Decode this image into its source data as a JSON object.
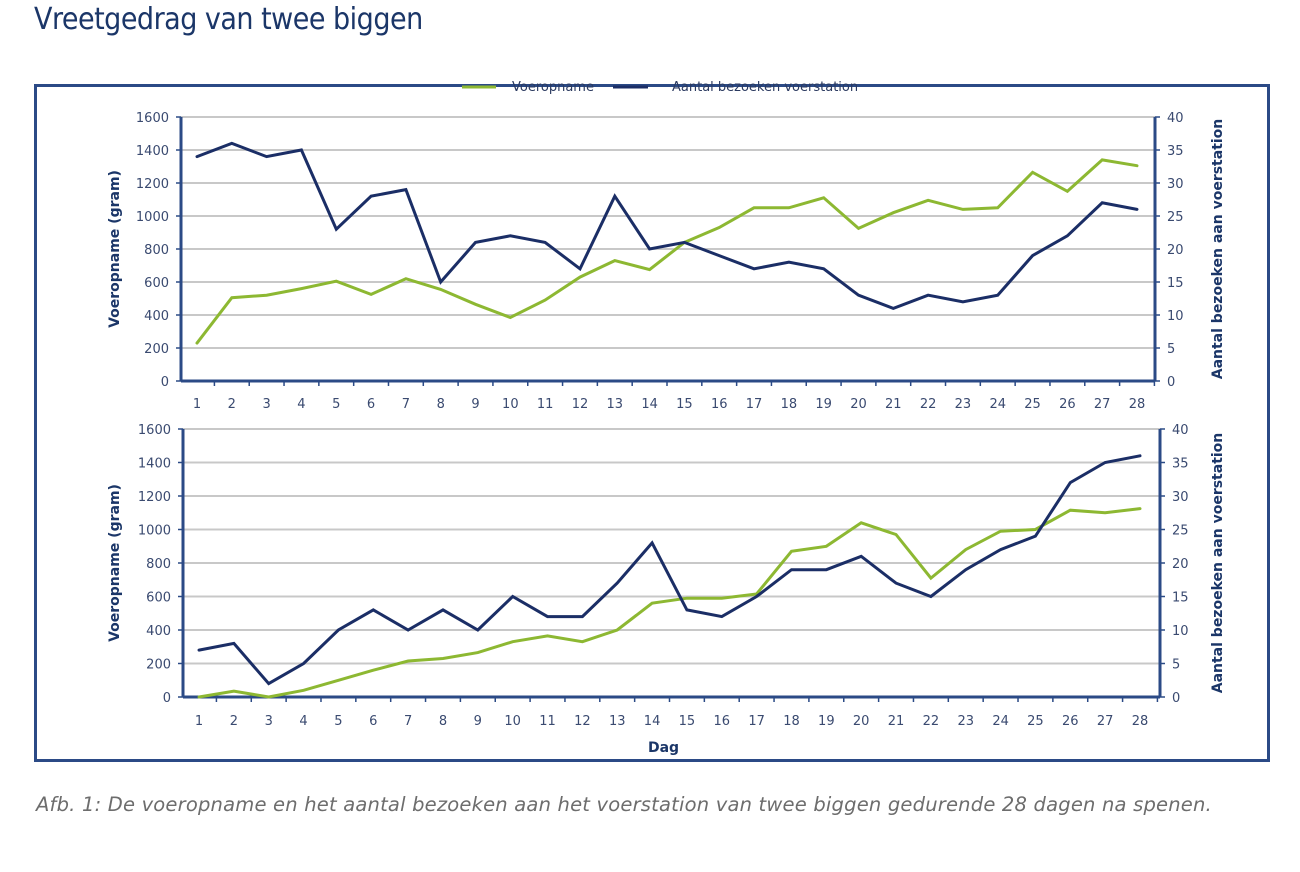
{
  "page": {
    "title": "Vreetgedrag van twee biggen",
    "caption": "Afb. 1: De voeropname en het aantal bezoeken aan het voerstation van twee biggen gedurende 28 dagen na spenen."
  },
  "colors": {
    "voeropname": "#8db832",
    "bezoeken": "#1b2e66",
    "grid": "#c8c8c8",
    "axis": "#2b4a86",
    "frame": "#2b4a86"
  },
  "legend": {
    "position": "top-center",
    "items": [
      {
        "label": "Voeropname",
        "color": "#8db832"
      },
      {
        "label": "Aantal bezoeken voerstation",
        "color": "#1b2e66"
      }
    ]
  },
  "chart_data": [
    {
      "type": "line",
      "title": "",
      "x": [
        1,
        2,
        3,
        4,
        5,
        6,
        7,
        8,
        9,
        10,
        11,
        12,
        13,
        14,
        15,
        16,
        17,
        18,
        19,
        20,
        21,
        22,
        23,
        24,
        25,
        26,
        27,
        28
      ],
      "x_tick_labels": [
        "1",
        "2",
        "3",
        "4",
        "5",
        "6",
        "7",
        "8",
        "9",
        "10",
        "11",
        "12",
        "13",
        "14",
        "15",
        "16",
        "17",
        "18",
        "19",
        "20",
        "21",
        "22",
        "23",
        "24",
        "25",
        "26",
        "27",
        "28"
      ],
      "xlabel": "",
      "ylabel": "Voeropname (gram)",
      "ylim": [
        0,
        1600
      ],
      "y_ticks": [
        "0",
        "200",
        "400",
        "600",
        "800",
        "1000",
        "1200",
        "1400",
        "1600"
      ],
      "y2label": "Aantal bezoeken aan voerstation",
      "y2lim": [
        0,
        40
      ],
      "y2_ticks": [
        "0",
        "5",
        "10",
        "15",
        "20",
        "25",
        "30",
        "35",
        "40"
      ],
      "grid": true,
      "series": [
        {
          "name": "Voeropname",
          "axis": "left",
          "values": [
            230,
            505,
            520,
            560,
            605,
            525,
            620,
            555,
            465,
            385,
            490,
            630,
            730,
            675,
            840,
            930,
            1050,
            1050,
            1110,
            925,
            1020,
            1095,
            1040,
            1050,
            1265,
            1150,
            1340,
            1305
          ]
        },
        {
          "name": "Aantal bezoeken voerstation",
          "axis": "right",
          "values": [
            34,
            36,
            34,
            35,
            23,
            28,
            29,
            15,
            21,
            22,
            21,
            17,
            28,
            20,
            21,
            19,
            17,
            18,
            17,
            13,
            11,
            13,
            12,
            13,
            19,
            22,
            27,
            26
          ]
        }
      ]
    },
    {
      "type": "line",
      "title": "",
      "x": [
        1,
        2,
        3,
        4,
        5,
        6,
        7,
        8,
        9,
        10,
        11,
        12,
        13,
        14,
        15,
        16,
        17,
        18,
        19,
        20,
        21,
        22,
        23,
        24,
        25,
        26,
        27,
        28
      ],
      "x_tick_labels": [
        "1",
        "2",
        "3",
        "4",
        "5",
        "6",
        "7",
        "8",
        "9",
        "10",
        "11",
        "12",
        "13",
        "14",
        "15",
        "16",
        "17",
        "18",
        "19",
        "20",
        "21",
        "22",
        "23",
        "24",
        "25",
        "26",
        "27",
        "28"
      ],
      "xlabel": "Dag",
      "ylabel": "Voeropname (gram)",
      "ylim": [
        0,
        1600
      ],
      "y_ticks": [
        "0",
        "200",
        "400",
        "600",
        "800",
        "1000",
        "1200",
        "1400",
        "1600"
      ],
      "y2label": "Aantal bezoeken aan voerstation",
      "y2lim": [
        0,
        40
      ],
      "y2_ticks": [
        "0",
        "5",
        "10",
        "15",
        "20",
        "25",
        "30",
        "35",
        "40"
      ],
      "grid": true,
      "series": [
        {
          "name": "Voeropname",
          "axis": "left",
          "values": [
            0,
            35,
            0,
            40,
            100,
            160,
            215,
            230,
            265,
            330,
            365,
            330,
            400,
            560,
            590,
            590,
            615,
            870,
            900,
            1040,
            970,
            710,
            880,
            990,
            1000,
            1115,
            1100,
            1125
          ]
        },
        {
          "name": "Aantal bezoeken voerstation",
          "axis": "right",
          "values": [
            7,
            8,
            2,
            5,
            10,
            13,
            10,
            13,
            10,
            15,
            12,
            12,
            17,
            23,
            13,
            12,
            15,
            19,
            19,
            21,
            17,
            15,
            19,
            22,
            24,
            32,
            35,
            36
          ]
        }
      ]
    }
  ]
}
